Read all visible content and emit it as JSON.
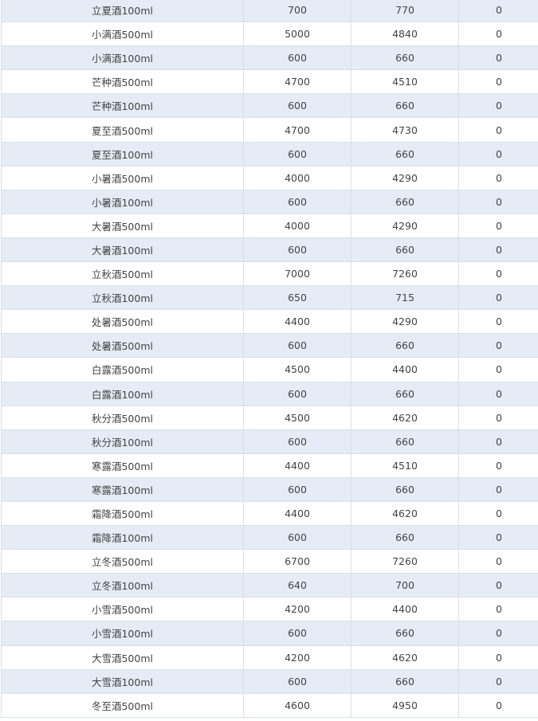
{
  "table": {
    "rows": [
      [
        "立夏酒100ml",
        "700",
        "770",
        "0"
      ],
      [
        "小满酒500ml",
        "5000",
        "4840",
        "0"
      ],
      [
        "小满酒100ml",
        "600",
        "660",
        "0"
      ],
      [
        "芒种酒500ml",
        "4700",
        "4510",
        "0"
      ],
      [
        "芒种酒100ml",
        "600",
        "660",
        "0"
      ],
      [
        "夏至酒500ml",
        "4700",
        "4730",
        "0"
      ],
      [
        "夏至酒100ml",
        "600",
        "660",
        "0"
      ],
      [
        "小暑酒500ml",
        "4000",
        "4290",
        "0"
      ],
      [
        "小暑酒100ml",
        "600",
        "660",
        "0"
      ],
      [
        "大暑酒500ml",
        "4000",
        "4290",
        "0"
      ],
      [
        "大暑酒100ml",
        "600",
        "660",
        "0"
      ],
      [
        "立秋酒500ml",
        "7000",
        "7260",
        "0"
      ],
      [
        "立秋酒100ml",
        "650",
        "715",
        "0"
      ],
      [
        "处暑酒500ml",
        "4400",
        "4290",
        "0"
      ],
      [
        "处暑酒500ml",
        "600",
        "660",
        "0"
      ],
      [
        "白露酒500ml",
        "4500",
        "4400",
        "0"
      ],
      [
        "白露酒100ml",
        "600",
        "660",
        "0"
      ],
      [
        "秋分酒500ml",
        "4500",
        "4620",
        "0"
      ],
      [
        "秋分酒100ml",
        "600",
        "660",
        "0"
      ],
      [
        "寒露酒500ml",
        "4400",
        "4510",
        "0"
      ],
      [
        "寒露酒100ml",
        "600",
        "660",
        "0"
      ],
      [
        "霜降酒500ml",
        "4400",
        "4620",
        "0"
      ],
      [
        "霜降酒100ml",
        "600",
        "660",
        "0"
      ],
      [
        "立冬酒500ml",
        "6700",
        "7260",
        "0"
      ],
      [
        "立冬酒100ml",
        "640",
        "700",
        "0"
      ],
      [
        "小雪酒500ml",
        "4200",
        "4400",
        "0"
      ],
      [
        "小雪酒100ml",
        "600",
        "660",
        "0"
      ],
      [
        "大雪酒500ml",
        "4200",
        "4620",
        "0"
      ],
      [
        "大雪酒100ml",
        "600",
        "660",
        "0"
      ],
      [
        "冬至酒500ml",
        "4600",
        "4950",
        "0"
      ]
    ]
  },
  "colors": {
    "stripe": "#e6ecf5",
    "border": "#dcdfe6",
    "text": "#444444"
  }
}
